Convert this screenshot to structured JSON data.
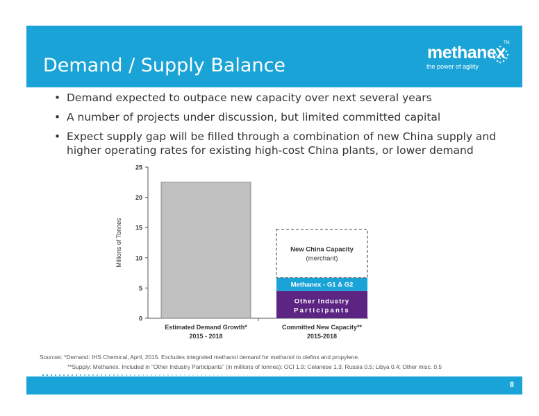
{
  "header": {
    "title": "Demand / Supply Balance"
  },
  "logo": {
    "name": "methanex",
    "tagline": "the power of agility",
    "tm": "TM"
  },
  "bullets": [
    "Demand expected to outpace new capacity over next several years",
    "A number of projects under discussion, but limited committed capital",
    "Expect supply gap will be filled through a combination of new China supply and higher operating rates for existing high-cost China plants, or lower demand"
  ],
  "chart_data": {
    "type": "bar",
    "ylabel": "Millions of Tonnes",
    "ylim": [
      0,
      25
    ],
    "yticks": [
      0,
      5,
      10,
      15,
      20,
      25
    ],
    "grid": false,
    "categories": [
      {
        "line1": "Estimated Demand Growth*",
        "line2": "2015 - 2018"
      },
      {
        "line1": "Committed New Capacity**",
        "line2": "2015-2018"
      }
    ],
    "demand": {
      "value": 22.5,
      "color": "#c0c0c0"
    },
    "supply_stack": [
      {
        "label": "Other Industry Participants",
        "value": 4.5,
        "color": "#5c2483",
        "text_color": "#ffffff"
      },
      {
        "label": "Methanex - G1 & G2",
        "value": 2.2,
        "color": "#1aa3d6",
        "text_color": "#ffffff"
      },
      {
        "label": "New China Capacity (merchant)",
        "value": 8.0,
        "color": "#ffffff",
        "text_color": "#333333",
        "dashed": true
      }
    ]
  },
  "sources": {
    "line1": "Sources:    *Demand:  IHS Chemical, April, 2015.  Excludes integrated methanol demand for methanol to olefins and propylene.",
    "line2": "**Supply: Methanex.  Included in “Other Industry Participants” (in millions of tonnes): OCI 1.9; Celanese 1.3; Russia 0.5;  Libya 0.4; Other misc. 0.5"
  },
  "footer": {
    "page_number": "8"
  }
}
